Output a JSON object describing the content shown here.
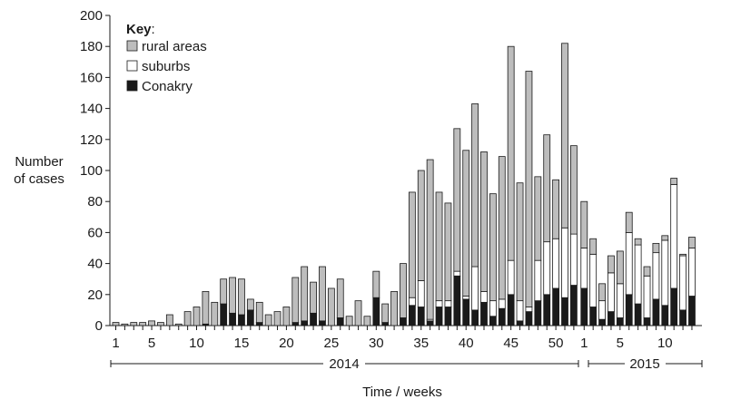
{
  "chart_data": {
    "type": "bar",
    "stacked": true,
    "ylabel_lines": [
      "Number",
      "of cases"
    ],
    "xlabel": "Time / weeks",
    "ylim": [
      0,
      200
    ],
    "yticks": [
      0,
      20,
      40,
      60,
      80,
      100,
      120,
      140,
      160,
      180,
      200
    ],
    "grid": false,
    "legend": {
      "title": "Key",
      "title_suffix": ":",
      "position": "top-left",
      "entries": [
        {
          "name": "rural areas",
          "color": "#bdbdbd"
        },
        {
          "name": "suburbs",
          "color": "#ffffff"
        },
        {
          "name": "Conakry",
          "color": "#1a1a1a"
        }
      ]
    },
    "year_groups": [
      {
        "label": "2014",
        "weeks": 52
      },
      {
        "label": "2015",
        "weeks": 13
      }
    ],
    "x_tick_labels_2014": [
      "1",
      "5",
      "10",
      "15",
      "20",
      "25",
      "30",
      "35",
      "40",
      "45",
      "50"
    ],
    "x_tick_labels_2015": [
      "1",
      "5",
      "10"
    ],
    "series_order": [
      "Conakry",
      "suburbs",
      "rural areas"
    ],
    "bars": [
      [
        0,
        0,
        2
      ],
      [
        0,
        0,
        1
      ],
      [
        0,
        0,
        2
      ],
      [
        0,
        0,
        2
      ],
      [
        0,
        0,
        3
      ],
      [
        0,
        0,
        2
      ],
      [
        0,
        0,
        7
      ],
      [
        0,
        0,
        1
      ],
      [
        0,
        0,
        9
      ],
      [
        0,
        0,
        12
      ],
      [
        1,
        0,
        21
      ],
      [
        0,
        0,
        15
      ],
      [
        14,
        0,
        16
      ],
      [
        8,
        0,
        23
      ],
      [
        7,
        0,
        23
      ],
      [
        10,
        0,
        7
      ],
      [
        2,
        0,
        13
      ],
      [
        0,
        0,
        7
      ],
      [
        0,
        0,
        9
      ],
      [
        0,
        0,
        12
      ],
      [
        2,
        0,
        29
      ],
      [
        3,
        0,
        35
      ],
      [
        8,
        0,
        20
      ],
      [
        3,
        0,
        35
      ],
      [
        0,
        0,
        24
      ],
      [
        5,
        0,
        25
      ],
      [
        0,
        0,
        6
      ],
      [
        0,
        0,
        16
      ],
      [
        0,
        0,
        6
      ],
      [
        18,
        0,
        17
      ],
      [
        2,
        0,
        12
      ],
      [
        0,
        0,
        22
      ],
      [
        5,
        0,
        35
      ],
      [
        13,
        5,
        68
      ],
      [
        12,
        17,
        71
      ],
      [
        3,
        1,
        103
      ],
      [
        12,
        4,
        70
      ],
      [
        12,
        4,
        63
      ],
      [
        32,
        3,
        92
      ],
      [
        17,
        2,
        94
      ],
      [
        10,
        28,
        105
      ],
      [
        15,
        7,
        90
      ],
      [
        6,
        10,
        69
      ],
      [
        11,
        6,
        92
      ],
      [
        20,
        22,
        138
      ],
      [
        3,
        13,
        76
      ],
      [
        9,
        3,
        152
      ],
      [
        16,
        26,
        54
      ],
      [
        20,
        34,
        69
      ],
      [
        24,
        32,
        38
      ],
      [
        18,
        45,
        119
      ],
      [
        26,
        33,
        57
      ],
      [
        24,
        26,
        30
      ],
      [
        12,
        34,
        10
      ],
      [
        4,
        12,
        11
      ],
      [
        9,
        25,
        11
      ],
      [
        5,
        22,
        21
      ],
      [
        20,
        40,
        13
      ],
      [
        14,
        38,
        4
      ],
      [
        5,
        27,
        6
      ],
      [
        17,
        30,
        6
      ],
      [
        13,
        42,
        3
      ],
      [
        24,
        67,
        4
      ],
      [
        10,
        35,
        1
      ],
      [
        19,
        31,
        7
      ]
    ]
  }
}
